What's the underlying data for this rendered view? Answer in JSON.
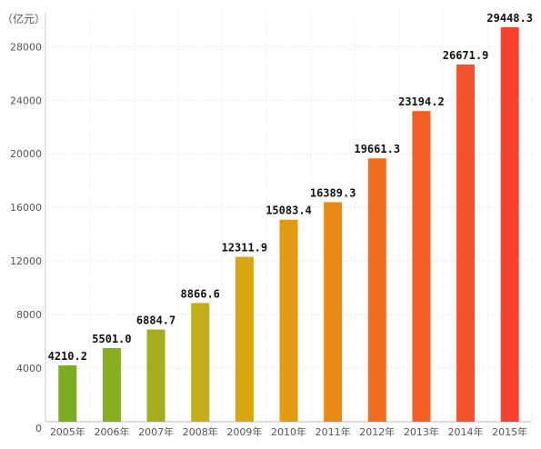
{
  "chart_data": {
    "type": "bar",
    "unit_label": "（亿元）",
    "categories": [
      "2005年",
      "2006年",
      "2007年",
      "2008年",
      "2009年",
      "2010年",
      "2011年",
      "2012年",
      "2013年",
      "2014年",
      "2015年"
    ],
    "values": [
      4210.2,
      5501.0,
      6884.7,
      8866.6,
      12311.9,
      15083.4,
      16389.3,
      19661.3,
      23194.2,
      26671.9,
      29448.3
    ],
    "value_labels": [
      "4210.2",
      "5501.0",
      "6884.7",
      "8866.6",
      "12311.9",
      "15083.4",
      "16389.3",
      "19661.3",
      "23194.2",
      "26671.9",
      "29448.3"
    ],
    "bar_colors": [
      "#7cac1f",
      "#88ae1f",
      "#a3ad1e",
      "#c3ae1a",
      "#d9a512",
      "#e39a10",
      "#e88a14",
      "#ef6f1f",
      "#f35f25",
      "#f5512b",
      "#f7402f"
    ],
    "ylim": [
      0,
      29448.3
    ],
    "yticks": [
      0,
      4000,
      8000,
      12000,
      16000,
      20000,
      24000,
      28000
    ],
    "ytick_labels": [
      "0",
      "4000",
      "8000",
      "12000",
      "16000",
      "20000",
      "24000",
      "28000"
    ],
    "grid": true,
    "xlabel": "",
    "ylabel": ""
  }
}
